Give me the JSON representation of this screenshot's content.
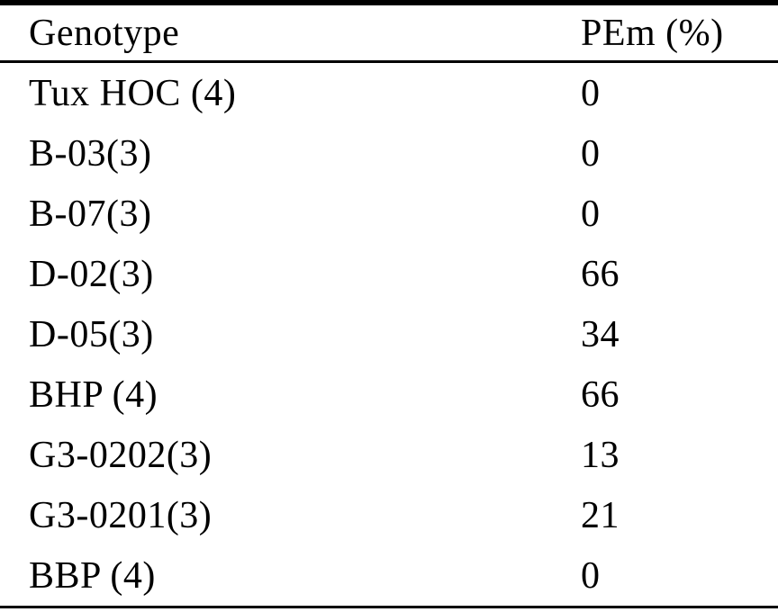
{
  "table": {
    "header": {
      "genotype": "Genotype",
      "pem": "PEm (%)"
    },
    "rows": [
      {
        "genotype": "Tux HOC (4)",
        "pem": "0"
      },
      {
        "genotype": "B-03(3)",
        "pem": "0"
      },
      {
        "genotype": "B-07(3)",
        "pem": "0"
      },
      {
        "genotype": "D-02(3)",
        "pem": "66"
      },
      {
        "genotype": "D-05(3)",
        "pem": "34"
      },
      {
        "genotype": "BHP (4)",
        "pem": "66"
      },
      {
        "genotype": "G3-0202(3)",
        "pem": "13"
      },
      {
        "genotype": "G3-0201(3)",
        "pem": "21"
      },
      {
        "genotype": "BBP (4)",
        "pem": "0"
      }
    ],
    "colors": {
      "text": "#000000",
      "rule": "#000000",
      "background": "#ffffff"
    }
  }
}
